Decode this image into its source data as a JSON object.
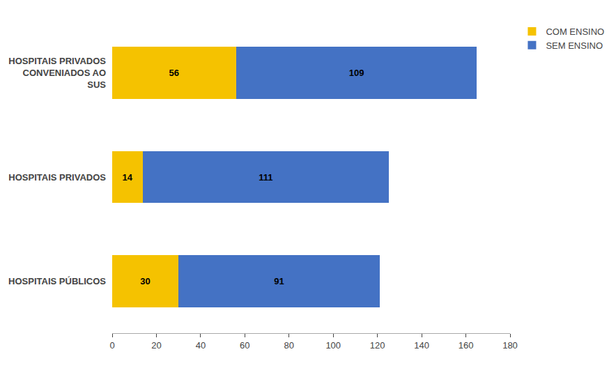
{
  "chart_data": {
    "type": "bar",
    "orientation": "horizontal",
    "stacked": true,
    "categories": [
      "HOSPITAIS PÚBLICOS",
      "HOSPITAIS PRIVADOS",
      "HOSPITAIS PRIVADOS\nCONVENIADOS AO\nSUS"
    ],
    "series": [
      {
        "name": "COM ENSINO",
        "color": "#F5C200",
        "values": [
          30,
          14,
          56
        ]
      },
      {
        "name": "SEM ENSINO",
        "color": "#4472C4",
        "values": [
          91,
          111,
          109
        ]
      }
    ],
    "xlim": [
      0,
      180
    ],
    "xticks": [
      0,
      20,
      40,
      60,
      80,
      100,
      120,
      140,
      160,
      180
    ],
    "data_labels": true,
    "grid": false,
    "legend": "right"
  }
}
